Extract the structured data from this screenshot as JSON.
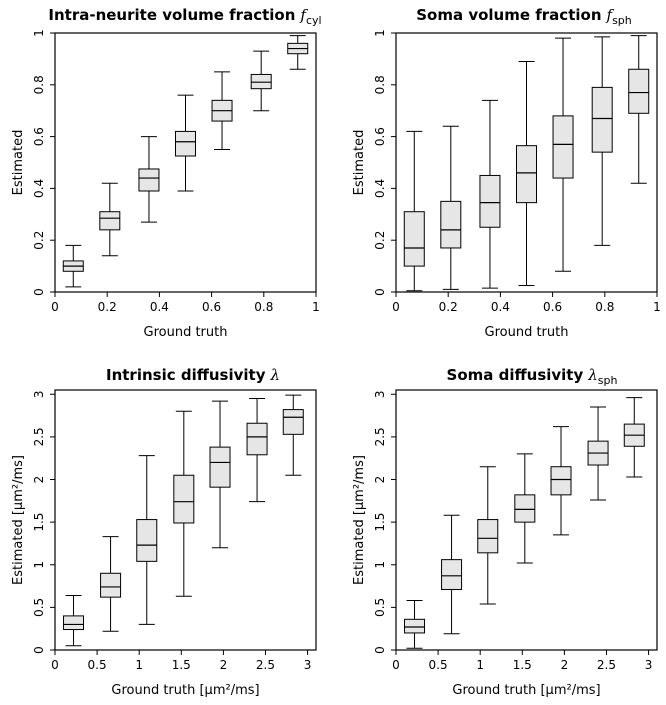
{
  "chart_data": [
    {
      "type": "boxplot",
      "title": "Intra-neurite volume fraction",
      "title_symbol": "f",
      "title_subscript": "cyl",
      "xlabel": "Ground truth",
      "ylabel": "Estimated",
      "xlim": [
        0,
        1
      ],
      "ylim": [
        0,
        1
      ],
      "xticks": [
        0,
        0.2,
        0.4,
        0.6,
        0.8,
        1
      ],
      "xtick_labels": [
        "0",
        "0.2",
        "0.4",
        "0.6",
        "0.8",
        "1"
      ],
      "yticks": [
        0,
        0.2,
        0.4,
        0.6,
        0.8,
        1
      ],
      "ytick_labels": [
        "0",
        "0.2",
        "0.4",
        "0.6",
        "0.8",
        "1"
      ],
      "boxes": [
        {
          "x": 0.07,
          "min": 0.02,
          "q1": 0.08,
          "median": 0.1,
          "q3": 0.12,
          "max": 0.18
        },
        {
          "x": 0.21,
          "min": 0.14,
          "q1": 0.24,
          "median": 0.285,
          "q3": 0.31,
          "max": 0.42
        },
        {
          "x": 0.36,
          "min": 0.27,
          "q1": 0.39,
          "median": 0.44,
          "q3": 0.475,
          "max": 0.6
        },
        {
          "x": 0.5,
          "min": 0.39,
          "q1": 0.525,
          "median": 0.58,
          "q3": 0.62,
          "max": 0.76
        },
        {
          "x": 0.64,
          "min": 0.55,
          "q1": 0.66,
          "median": 0.7,
          "q3": 0.74,
          "max": 0.85
        },
        {
          "x": 0.79,
          "min": 0.7,
          "q1": 0.785,
          "median": 0.81,
          "q3": 0.84,
          "max": 0.93
        },
        {
          "x": 0.93,
          "min": 0.86,
          "q1": 0.92,
          "median": 0.94,
          "q3": 0.96,
          "max": 0.99
        }
      ]
    },
    {
      "type": "boxplot",
      "title": "Soma volume fraction",
      "title_symbol": "f",
      "title_subscript": "sph",
      "xlabel": "Ground truth",
      "ylabel": "Estimated",
      "xlim": [
        0,
        1
      ],
      "ylim": [
        0,
        1
      ],
      "xticks": [
        0,
        0.2,
        0.4,
        0.6,
        0.8,
        1
      ],
      "xtick_labels": [
        "0",
        "0.2",
        "0.4",
        "0.6",
        "0.8",
        "1"
      ],
      "yticks": [
        0,
        0.2,
        0.4,
        0.6,
        0.8,
        1
      ],
      "ytick_labels": [
        "0",
        "0.2",
        "0.4",
        "0.6",
        "0.8",
        "1"
      ],
      "boxes": [
        {
          "x": 0.07,
          "min": 0.005,
          "q1": 0.1,
          "median": 0.17,
          "q3": 0.31,
          "max": 0.62
        },
        {
          "x": 0.21,
          "min": 0.01,
          "q1": 0.17,
          "median": 0.24,
          "q3": 0.35,
          "max": 0.64
        },
        {
          "x": 0.36,
          "min": 0.015,
          "q1": 0.25,
          "median": 0.345,
          "q3": 0.45,
          "max": 0.74
        },
        {
          "x": 0.5,
          "min": 0.025,
          "q1": 0.345,
          "median": 0.46,
          "q3": 0.565,
          "max": 0.89
        },
        {
          "x": 0.64,
          "min": 0.08,
          "q1": 0.44,
          "median": 0.57,
          "q3": 0.68,
          "max": 0.98
        },
        {
          "x": 0.79,
          "min": 0.18,
          "q1": 0.54,
          "median": 0.67,
          "q3": 0.79,
          "max": 0.985
        },
        {
          "x": 0.93,
          "min": 0.42,
          "q1": 0.69,
          "median": 0.77,
          "q3": 0.86,
          "max": 0.99
        }
      ]
    },
    {
      "type": "boxplot",
      "title": "Intrinsic diffusivity",
      "title_symbol": "λ",
      "title_subscript": "",
      "xlabel": "Ground truth [μm²/ms]",
      "ylabel": "Estimated [μm²/ms]",
      "xlim": [
        0,
        3.1
      ],
      "ylim": [
        0,
        3.05
      ],
      "xticks": [
        0,
        0.5,
        1,
        1.5,
        2,
        2.5,
        3
      ],
      "xtick_labels": [
        "0",
        "0.5",
        "1",
        "1.5",
        "2",
        "2.5",
        "3"
      ],
      "yticks": [
        0,
        0.5,
        1,
        1.5,
        2,
        2.5,
        3
      ],
      "ytick_labels": [
        "0",
        "0.5",
        "1",
        "1.5",
        "2",
        "2.5",
        "3"
      ],
      "boxes": [
        {
          "x": 0.22,
          "min": 0.05,
          "q1": 0.24,
          "median": 0.3,
          "q3": 0.4,
          "max": 0.64
        },
        {
          "x": 0.66,
          "min": 0.22,
          "q1": 0.62,
          "median": 0.74,
          "q3": 0.9,
          "max": 1.33
        },
        {
          "x": 1.09,
          "min": 0.3,
          "q1": 1.04,
          "median": 1.23,
          "q3": 1.53,
          "max": 2.28
        },
        {
          "x": 1.53,
          "min": 0.63,
          "q1": 1.49,
          "median": 1.74,
          "q3": 2.05,
          "max": 2.8
        },
        {
          "x": 1.96,
          "min": 1.2,
          "q1": 1.91,
          "median": 2.2,
          "q3": 2.38,
          "max": 2.92
        },
        {
          "x": 2.4,
          "min": 1.74,
          "q1": 2.29,
          "median": 2.5,
          "q3": 2.66,
          "max": 2.95
        },
        {
          "x": 2.83,
          "min": 2.05,
          "q1": 2.53,
          "median": 2.73,
          "q3": 2.82,
          "max": 2.99
        }
      ]
    },
    {
      "type": "boxplot",
      "title": "Soma diffusivity",
      "title_symbol": "λ",
      "title_subscript": "sph",
      "xlabel": "Ground truth [μm²/ms]",
      "ylabel": "Estimated [μm²/ms]",
      "xlim": [
        0,
        3.1
      ],
      "ylim": [
        0,
        3.05
      ],
      "xticks": [
        0,
        0.5,
        1,
        1.5,
        2,
        2.5,
        3
      ],
      "xtick_labels": [
        "0",
        "0.5",
        "1",
        "1.5",
        "2",
        "2.5",
        "3"
      ],
      "yticks": [
        0,
        0.5,
        1,
        1.5,
        2,
        2.5,
        3
      ],
      "ytick_labels": [
        "0",
        "0.5",
        "1",
        "1.5",
        "2",
        "2.5",
        "3"
      ],
      "boxes": [
        {
          "x": 0.22,
          "min": 0.02,
          "q1": 0.2,
          "median": 0.27,
          "q3": 0.36,
          "max": 0.58
        },
        {
          "x": 0.66,
          "min": 0.19,
          "q1": 0.71,
          "median": 0.87,
          "q3": 1.06,
          "max": 1.58
        },
        {
          "x": 1.09,
          "min": 0.54,
          "q1": 1.14,
          "median": 1.31,
          "q3": 1.53,
          "max": 2.15
        },
        {
          "x": 1.53,
          "min": 1.02,
          "q1": 1.5,
          "median": 1.65,
          "q3": 1.82,
          "max": 2.3
        },
        {
          "x": 1.96,
          "min": 1.35,
          "q1": 1.82,
          "median": 2.0,
          "q3": 2.15,
          "max": 2.62
        },
        {
          "x": 2.4,
          "min": 1.76,
          "q1": 2.17,
          "median": 2.31,
          "q3": 2.45,
          "max": 2.85
        },
        {
          "x": 2.83,
          "min": 2.03,
          "q1": 2.39,
          "median": 2.52,
          "q3": 2.65,
          "max": 2.96
        }
      ]
    }
  ]
}
